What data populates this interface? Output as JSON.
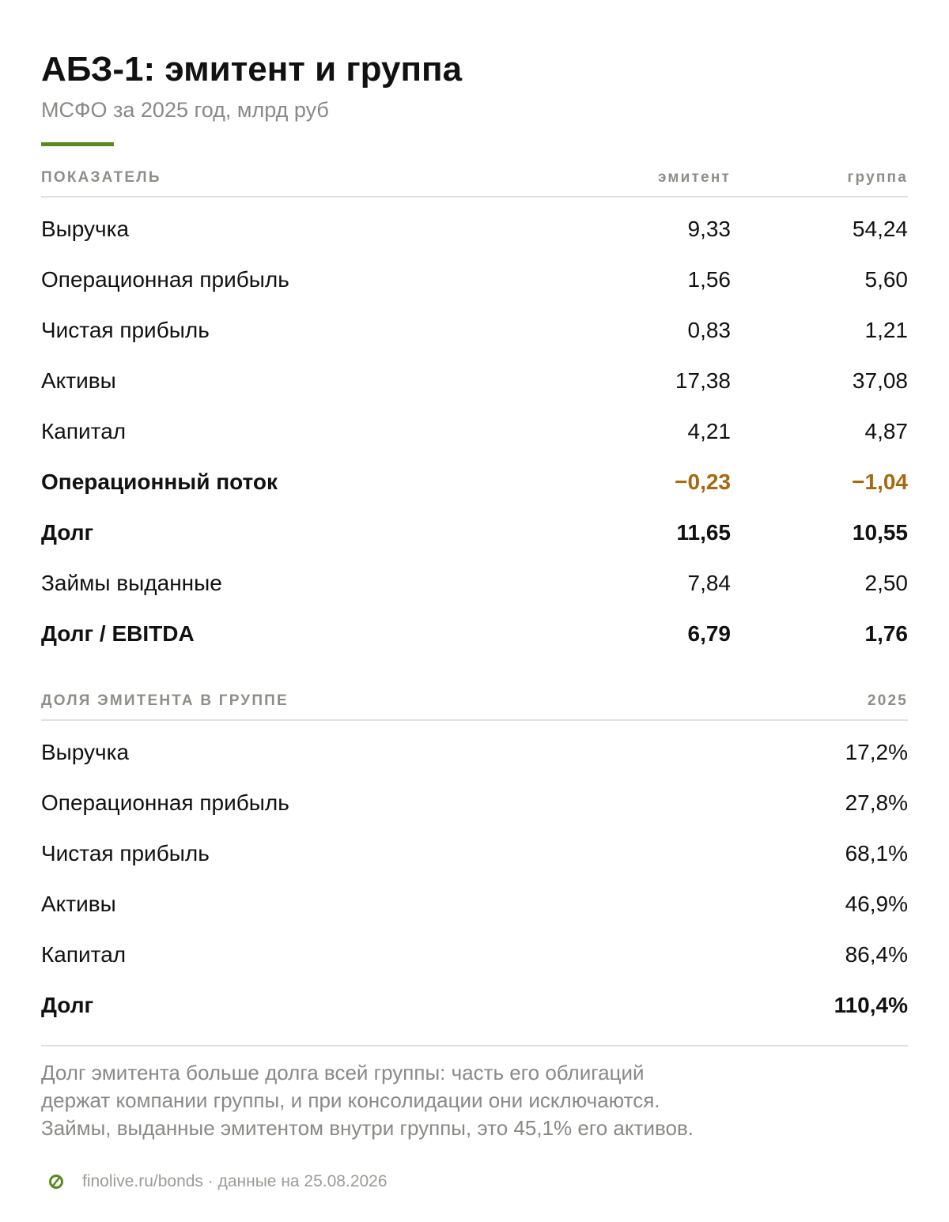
{
  "header": {
    "title": "АБЗ-1: эмитент и группа",
    "subtitle": "МСФО за 2025 год, млрд руб"
  },
  "table1": {
    "columns": [
      "ПОКАЗАТЕЛЬ",
      "эмитент",
      "группа"
    ],
    "rows": [
      {
        "label": "Выручка",
        "issuer": "9,33",
        "group": "54,24"
      },
      {
        "label": "Операционная прибыль",
        "issuer": "1,56",
        "group": "5,60"
      },
      {
        "label": "Чистая прибыль",
        "issuer": "0,83",
        "group": "1,21"
      },
      {
        "label": "Активы",
        "issuer": "17,38",
        "group": "37,08"
      },
      {
        "label": "Капитал",
        "issuer": "4,21",
        "group": "4,87"
      },
      {
        "label": "Операционный поток",
        "issuer": "−0,23",
        "group": "−1,04"
      },
      {
        "label": "Долг",
        "issuer": "11,65",
        "group": "10,55"
      },
      {
        "label": "Займы выданные",
        "issuer": "7,84",
        "group": "2,50"
      },
      {
        "label": "Долг / EBITDA",
        "issuer": "6,79",
        "group": "1,76"
      }
    ]
  },
  "table2": {
    "columns": [
      "ДОЛЯ ЭМИТЕНТА В ГРУППЕ",
      "2025"
    ],
    "rows": [
      {
        "label": "Выручка",
        "value": "17,2%"
      },
      {
        "label": "Операционная прибыль",
        "value": "27,8%"
      },
      {
        "label": "Чистая прибыль",
        "value": "68,1%"
      },
      {
        "label": "Активы",
        "value": "46,9%"
      },
      {
        "label": "Капитал",
        "value": "86,4%"
      },
      {
        "label": "Долг",
        "value": "110,4%"
      }
    ]
  },
  "note": {
    "lines": [
      "Долг эмитента больше долга всей группы: часть его облигаций",
      "держат компании группы, и при консолидации они исключаются.",
      "Займы, выданные эмитентом внутри группы, это 45,1% его активов."
    ]
  },
  "footer": {
    "source": "finolive.ru/bonds · данные на 25.08.2026",
    "logo_icon": "finolive-logo-icon"
  },
  "colors": {
    "accent": "#5a8a1e",
    "negative": "#a8690e",
    "muted": "#888a86"
  }
}
